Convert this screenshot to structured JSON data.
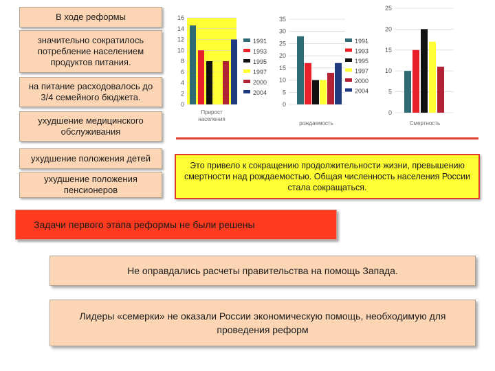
{
  "left_boxes": [
    "В ходе реформы",
    "значительно сократилось потребление населением продуктов питания.",
    "на питание расходовалось до 3/4 семейного бюджета.",
    "ухудшение медицинского обслуживания",
    "ухудшение положения детей",
    "ухудшение положения пенсионеров"
  ],
  "conclusion": "Это привело к сокращению продолжительности жизни, превышению смертности над рождаемостью. Общая численность населения России стала сокращаться.",
  "tasks_banner": "Задачи первого этапа реформы не были решены",
  "fact1": "Не оправдались расчеты правительства на помощь Запада.",
  "fact2": "Лидеры «семерки» не оказали России экономическую помощь, необходимую для проведения реформ",
  "colors": {
    "1991": "#2e6b75",
    "1993": "#e8202a",
    "1995": "#111111",
    "1997": "#ffff33",
    "2000": "#b22234",
    "2004": "#1f3a80",
    "panel_yellow": "#ffff33",
    "box_fill": "#fcd5b5",
    "banner_red": "#ff3a1e"
  },
  "chart_data": [
    {
      "type": "bar",
      "xlabel": "Прирост населения",
      "ylim": [
        0,
        16
      ],
      "yticks": [
        0,
        2,
        4,
        6,
        8,
        10,
        12,
        14,
        16
      ],
      "background": "yellow",
      "series": [
        {
          "name": "1991",
          "value": 14.6
        },
        {
          "name": "1993",
          "value": 10.0
        },
        {
          "name": "1995",
          "value": 8.0
        },
        {
          "name": "1997",
          "value": 6.0
        },
        {
          "name": "2000",
          "value": 8.0
        },
        {
          "name": "2004",
          "value": 12.0
        }
      ],
      "legend": [
        "1991",
        "1993",
        "1995",
        "1997",
        "2000",
        "2004"
      ]
    },
    {
      "type": "bar",
      "xlabel": "рождаемость",
      "ylim": [
        0,
        35
      ],
      "yticks": [
        0,
        5,
        10,
        15,
        20,
        25,
        30,
        35
      ],
      "series": [
        {
          "name": "1991",
          "value": 28
        },
        {
          "name": "1993",
          "value": 17
        },
        {
          "name": "1995",
          "value": 10
        },
        {
          "name": "1997",
          "value": 10
        },
        {
          "name": "2000",
          "value": 13
        },
        {
          "name": "2004",
          "value": 17
        }
      ],
      "legend": [
        "1991",
        "1993",
        "1995",
        "1997",
        "2000",
        "2004"
      ]
    },
    {
      "type": "bar",
      "xlabel": "Смертность",
      "ylim": [
        0,
        25
      ],
      "yticks": [
        0,
        5,
        10,
        15,
        20,
        25
      ],
      "series": [
        {
          "name": "1991",
          "value": 10
        },
        {
          "name": "1993",
          "value": 15
        },
        {
          "name": "1995",
          "value": 20
        },
        {
          "name": "1997",
          "value": 17
        },
        {
          "name": "2000",
          "value": 11
        }
      ]
    }
  ]
}
